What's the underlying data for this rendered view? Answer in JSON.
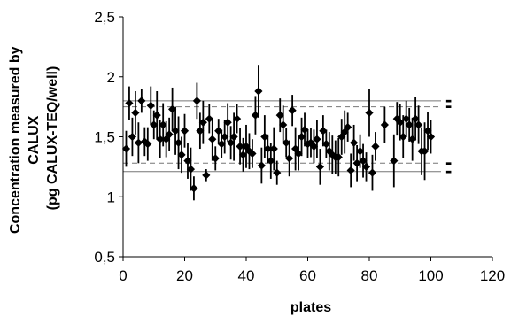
{
  "chart_data": {
    "type": "scatter",
    "title": "",
    "xlabel": "plates",
    "ylabel_lines": [
      "Concentration measured by",
      "CALUX",
      "(pg CALUX-TEQ/well)"
    ],
    "xlim": [
      0,
      120
    ],
    "ylim": [
      0.5,
      2.5
    ],
    "x_ticks": [
      0,
      20,
      40,
      60,
      80,
      100,
      120
    ],
    "y_ticks": [
      0.5,
      1,
      1.5,
      2,
      2.5
    ],
    "x_tick_labels": [
      "0",
      "20",
      "40",
      "60",
      "80",
      "100",
      "120"
    ],
    "y_tick_labels": [
      "0,5",
      "1",
      "1,5",
      "2",
      "2,5"
    ],
    "grid": false,
    "legend": "none",
    "marker_color": "#000000",
    "reference_lines": [
      {
        "y": 1.8,
        "style": "solid",
        "label": "-"
      },
      {
        "y": 1.75,
        "style": "dashed",
        "label": "-"
      },
      {
        "y": 1.28,
        "style": "dashed",
        "label": "-"
      },
      {
        "y": 1.21,
        "style": "solid",
        "label": "-"
      }
    ],
    "series": [
      {
        "x": [
          1,
          2,
          3,
          4,
          5,
          6,
          7,
          8,
          9,
          10,
          11,
          12,
          13,
          14,
          15,
          16,
          17,
          18,
          19,
          20,
          21,
          22,
          23,
          24,
          25,
          26,
          27,
          28,
          29,
          30,
          31,
          32,
          33,
          34,
          35,
          36,
          37,
          38,
          39,
          40,
          41,
          42,
          43,
          44,
          45,
          46,
          47,
          48,
          49,
          50,
          51,
          52,
          53,
          54,
          55,
          56,
          57,
          58,
          59,
          60,
          61,
          62,
          63,
          64,
          65,
          66,
          67,
          68,
          69,
          70,
          71,
          72,
          73,
          74,
          75,
          76,
          77,
          78,
          79,
          80,
          81,
          82,
          85,
          88,
          89,
          90,
          91,
          92,
          93,
          94,
          95,
          96,
          97,
          98,
          99,
          100
        ],
        "y": [
          1.4,
          1.78,
          1.5,
          1.7,
          1.45,
          1.8,
          1.46,
          1.44,
          1.76,
          1.6,
          1.68,
          1.48,
          1.6,
          1.48,
          1.52,
          1.73,
          1.55,
          1.45,
          1.35,
          1.55,
          1.3,
          1.23,
          1.07,
          1.8,
          1.55,
          1.62,
          1.18,
          1.65,
          1.48,
          1.32,
          1.55,
          1.44,
          1.5,
          1.62,
          1.45,
          1.5,
          1.65,
          1.42,
          1.35,
          1.42,
          1.38,
          1.36,
          1.68,
          1.88,
          1.26,
          1.5,
          1.4,
          1.3,
          1.4,
          1.2,
          1.68,
          1.6,
          1.45,
          1.32,
          1.72,
          1.4,
          1.36,
          1.5,
          1.56,
          1.44,
          1.45,
          1.42,
          1.48,
          1.25,
          1.55,
          1.44,
          1.38,
          1.35,
          1.33,
          1.33,
          1.5,
          1.54,
          1.58,
          1.22,
          1.45,
          1.28,
          1.38,
          1.3,
          1.25,
          1.7,
          1.2,
          1.42,
          1.6,
          1.3,
          1.65,
          1.62,
          1.5,
          1.65,
          1.6,
          1.48,
          1.65,
          1.6,
          1.38,
          1.38,
          1.55,
          1.5
        ],
        "error": [
          0.15,
          0.14,
          0.16,
          0.18,
          0.17,
          0.1,
          0.12,
          0.14,
          0.16,
          0.12,
          0.2,
          0.16,
          0.18,
          0.15,
          0.14,
          0.18,
          0.2,
          0.22,
          0.15,
          0.14,
          0.15,
          0.18,
          0.1,
          0.15,
          0.15,
          0.18,
          0.05,
          0.12,
          0.18,
          0.1,
          0.1,
          0.12,
          0.14,
          0.16,
          0.14,
          0.2,
          0.12,
          0.15,
          0.14,
          0.18,
          0.15,
          0.12,
          0.16,
          0.22,
          0.15,
          0.18,
          0.12,
          0.15,
          0.18,
          0.1,
          0.14,
          0.16,
          0.12,
          0.15,
          0.13,
          0.18,
          0.14,
          0.16,
          0.14,
          0.12,
          0.12,
          0.14,
          0.16,
          0.15,
          0.13,
          0.12,
          0.16,
          0.16,
          0.14,
          0.16,
          0.15,
          0.18,
          0.12,
          0.14,
          0.15,
          0.15,
          0.14,
          0.14,
          0.12,
          0.2,
          0.15,
          0.12,
          0.15,
          0.22,
          0.14,
          0.15,
          0.18,
          0.15,
          0.14,
          0.18,
          0.18,
          0.16,
          0.2,
          0.24,
          0.16,
          0.14
        ]
      }
    ]
  }
}
